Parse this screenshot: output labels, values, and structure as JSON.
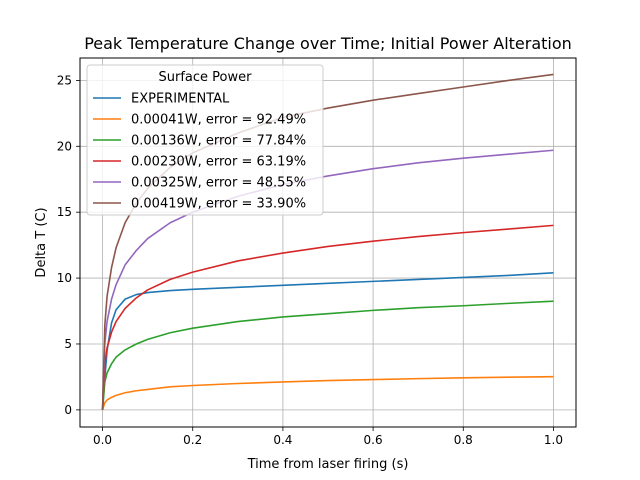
{
  "chart_data": {
    "type": "line",
    "title": "Peak Temperature Change over Time; Initial Power Alteration",
    "xlabel": "Time from laser firing (s)",
    "ylabel": "Delta T (C)",
    "xlim": [
      -0.05,
      1.05
    ],
    "ylim": [
      -1.3,
      26.7
    ],
    "x_ticks": [
      0.0,
      0.2,
      0.4,
      0.6,
      0.8,
      1.0
    ],
    "x_tick_labels": [
      "0.0",
      "0.2",
      "0.4",
      "0.6",
      "0.8",
      "1.0"
    ],
    "y_ticks": [
      0,
      5,
      10,
      15,
      20,
      25
    ],
    "y_tick_labels": [
      "0",
      "5",
      "10",
      "15",
      "20",
      "25"
    ],
    "grid": true,
    "legend": {
      "title": "Surface Power",
      "placement": "top-left"
    },
    "x": [
      0,
      0.005,
      0.01,
      0.02,
      0.03,
      0.05,
      0.075,
      0.1,
      0.15,
      0.2,
      0.3,
      0.4,
      0.5,
      0.6,
      0.7,
      0.8,
      0.9,
      1.0
    ],
    "series": [
      {
        "name": "EXPERIMENTAL",
        "color": "#1f77b4",
        "values": [
          0,
          2.4,
          4.5,
          6.6,
          7.6,
          8.4,
          8.75,
          8.9,
          9.05,
          9.15,
          9.3,
          9.45,
          9.6,
          9.75,
          9.9,
          10.05,
          10.2,
          10.4
        ]
      },
      {
        "name": "0.00041W, error = 92.49%",
        "color": "#ff7f0e",
        "values": [
          0,
          0.55,
          0.75,
          0.95,
          1.1,
          1.3,
          1.45,
          1.55,
          1.75,
          1.85,
          2.0,
          2.12,
          2.22,
          2.3,
          2.37,
          2.43,
          2.48,
          2.52
        ]
      },
      {
        "name": "0.00136W, error = 77.84%",
        "color": "#2ca02c",
        "values": [
          0,
          2.1,
          2.8,
          3.5,
          4.0,
          4.55,
          5.0,
          5.35,
          5.85,
          6.2,
          6.7,
          7.05,
          7.3,
          7.55,
          7.75,
          7.9,
          8.08,
          8.25
        ]
      },
      {
        "name": "0.00230W, error = 63.19%",
        "color": "#d62728",
        "values": [
          0,
          3.5,
          4.7,
          5.9,
          6.7,
          7.7,
          8.5,
          9.1,
          9.9,
          10.45,
          11.3,
          11.9,
          12.4,
          12.8,
          13.15,
          13.45,
          13.72,
          14.0
        ]
      },
      {
        "name": "0.00325W, error = 48.55%",
        "color": "#9467bd",
        "values": [
          0,
          5.0,
          6.7,
          8.4,
          9.5,
          11.0,
          12.1,
          13.0,
          14.2,
          15.0,
          16.2,
          17.1,
          17.75,
          18.3,
          18.75,
          19.1,
          19.4,
          19.7
        ]
      },
      {
        "name": "0.00419W, error = 33.90%",
        "color": "#8c564b",
        "values": [
          0,
          6.4,
          8.6,
          10.8,
          12.3,
          14.2,
          15.7,
          16.8,
          18.4,
          19.5,
          21.0,
          22.2,
          22.9,
          23.5,
          24.0,
          24.5,
          25.0,
          25.45
        ]
      }
    ]
  }
}
